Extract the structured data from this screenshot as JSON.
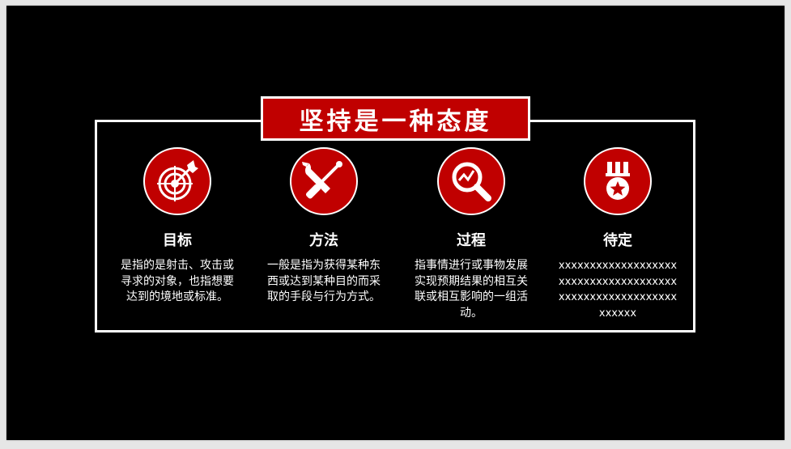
{
  "slide": {
    "title": "坚持是一种态度",
    "accent_color": "#c00000",
    "background_color": "#000000",
    "cards": [
      {
        "icon": "target-icon",
        "title": "目标",
        "description": "是指的是射击、攻击或寻求的对象，也指想要达到的境地或标准。"
      },
      {
        "icon": "tools-icon",
        "title": "方法",
        "description": "一般是指为获得某种东西或达到某种目的而采取的手段与行为方式。"
      },
      {
        "icon": "magnifier-chart-icon",
        "title": "过程",
        "description": "指事情进行或事物发展实现预期结果的相互关联或相互影响的一组活动。"
      },
      {
        "icon": "medal-icon",
        "title": "待定",
        "description": "xxxxxxxxxxxxxxxxxxxxxxxxxxxxxxxxxxxxxxxxxxxxxxxxxxxxxxxxxxxxxxx"
      }
    ]
  }
}
